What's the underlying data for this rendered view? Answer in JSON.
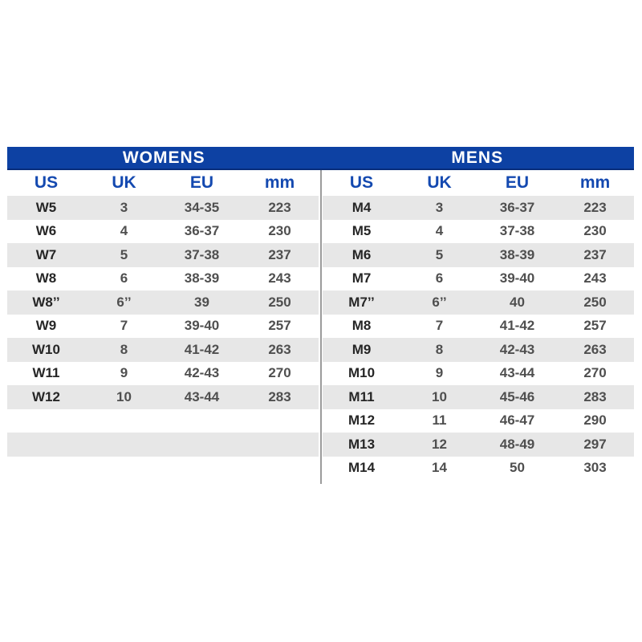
{
  "page": {
    "background": "#ffffff"
  },
  "colors": {
    "header_bar_bg": "#0d41a3",
    "header_bar_border": "#082d7a",
    "header_bar_text": "#ffffff",
    "column_header_text": "#1449b0",
    "stripe_bg": "#e7e7e7",
    "label_text": "#262626",
    "value_text": "#4f4f4f",
    "divider": "#9b9b9b"
  },
  "chart_data": {
    "type": "table",
    "tables": [
      {
        "title": "WOMENS",
        "columns": [
          "US",
          "UK",
          "EU",
          "mm"
        ],
        "rows": [
          [
            "W5",
            "3",
            "34-35",
            "223"
          ],
          [
            "W6",
            "4",
            "36-37",
            "230"
          ],
          [
            "W7",
            "5",
            "37-38",
            "237"
          ],
          [
            "W8",
            "6",
            "38-39",
            "243"
          ],
          [
            "W8’’",
            "6’’",
            "39",
            "250"
          ],
          [
            "W9",
            "7",
            "39-40",
            "257"
          ],
          [
            "W10",
            "8",
            "41-42",
            "263"
          ],
          [
            "W11",
            "9",
            "42-43",
            "270"
          ],
          [
            "W12",
            "10",
            "43-44",
            "283"
          ],
          [
            "",
            "",
            "",
            ""
          ],
          [
            "",
            "",
            "",
            ""
          ],
          [
            "",
            "",
            "",
            ""
          ]
        ]
      },
      {
        "title": "MENS",
        "columns": [
          "US",
          "UK",
          "EU",
          "mm"
        ],
        "rows": [
          [
            "M4",
            "3",
            "36-37",
            "223"
          ],
          [
            "M5",
            "4",
            "37-38",
            "230"
          ],
          [
            "M6",
            "5",
            "38-39",
            "237"
          ],
          [
            "M7",
            "6",
            "39-40",
            "243"
          ],
          [
            "M7’’",
            "6’’",
            "40",
            "250"
          ],
          [
            "M8",
            "7",
            "41-42",
            "257"
          ],
          [
            "M9",
            "8",
            "42-43",
            "263"
          ],
          [
            "M10",
            "9",
            "43-44",
            "270"
          ],
          [
            "M11",
            "10",
            "45-46",
            "283"
          ],
          [
            "M12",
            "11",
            "46-47",
            "290"
          ],
          [
            "M13",
            "12",
            "48-49",
            "297"
          ],
          [
            "M14",
            "14",
            "50",
            "303"
          ]
        ]
      }
    ]
  }
}
